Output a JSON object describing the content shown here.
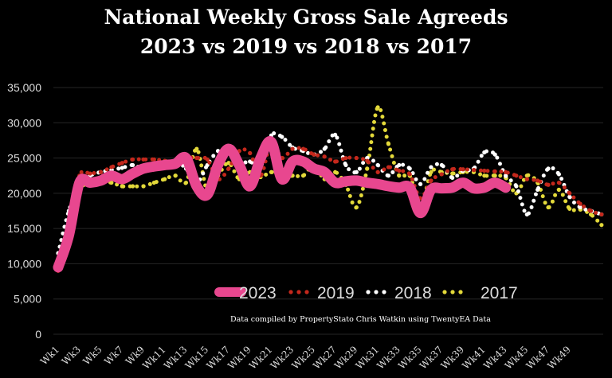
{
  "chart_data": {
    "type": "line",
    "title": [
      "National Weekly Gross Sale Agreeds",
      "2023 vs 2019 vs 2018 vs 2017"
    ],
    "annotation": "Data compiled by PropertyStato Chris Watkin using TwentyEA Data",
    "xlabel": "",
    "ylabel": "",
    "ylim": [
      0,
      35000
    ],
    "yticks": [
      "0",
      "5,000",
      "10,000",
      "15,000",
      "20,000",
      "25,000",
      "30,000",
      "35,000"
    ],
    "yticks_values": [
      0,
      5000,
      10000,
      15000,
      20000,
      25000,
      30000,
      35000
    ],
    "xtick_labels": [
      "Wk1",
      "Wk3",
      "Wk5",
      "Wk7",
      "Wk9",
      "Wk11",
      "Wk13",
      "Wk15",
      "Wk17",
      "Wk19",
      "Wk21",
      "Wk23",
      "Wk25",
      "Wk27",
      "Wk29",
      "Wk31",
      "Wk33",
      "Wk35",
      "Wk37",
      "Wk39",
      "Wk41",
      "Wk43",
      "Wk45",
      "Wk47",
      "Wk49"
    ],
    "grid": "horizontal",
    "legend_placement": "bottom-center",
    "series": [
      {
        "name": "2023",
        "color": "#e8478f",
        "style": "thick-solid-smooth",
        "values": [
          9500,
          14000,
          21500,
          21500,
          21800,
          22500,
          22000,
          22800,
          23500,
          23800,
          24000,
          24200,
          25000,
          21000,
          19800,
          24000,
          26300,
          24000,
          21000,
          25000,
          27300,
          22000,
          24500,
          24500,
          23500,
          23000,
          21500,
          21700,
          21800,
          21500,
          21300,
          21000,
          20800,
          20800,
          17200,
          20500,
          20700,
          20800,
          21500,
          20700,
          20800,
          21500,
          20800
        ]
      },
      {
        "name": "2019",
        "color": "#c4281c",
        "style": "dotted",
        "values": [
          9000,
          15000,
          22500,
          22800,
          23000,
          23700,
          24300,
          24800,
          24800,
          24800,
          24600,
          24300,
          25000,
          25000,
          24800,
          22000,
          23500,
          26000,
          25700,
          22500,
          27200,
          25000,
          26300,
          26300,
          25500,
          25200,
          24500,
          25000,
          25000,
          24600,
          23000,
          23700,
          23200,
          22700,
          19300,
          21800,
          22700,
          23400,
          23400,
          23300,
          23200,
          23100,
          23000,
          22500,
          22000,
          21800,
          21200,
          21500,
          20000,
          18500,
          17500,
          17000
        ]
      },
      {
        "name": "2018",
        "color": "#ffffff",
        "style": "dotted",
        "values": [
          11500,
          17500,
          21000,
          22500,
          23000,
          23300,
          23600,
          24000,
          23500,
          23800,
          24000,
          24500,
          23500,
          21500,
          24000,
          26000,
          26000,
          24300,
          24500,
          23800,
          28200,
          28000,
          26500,
          26000,
          25500,
          26300,
          28300,
          24000,
          23000,
          25000,
          24000,
          22500,
          24000,
          23500,
          21300,
          23700,
          24000,
          22200,
          23200,
          23500,
          25800,
          25500,
          22500,
          21000,
          17000,
          20500,
          23500,
          22700,
          19500,
          18000,
          17500,
          17000
        ]
      },
      {
        "name": "2017",
        "color": "#e3d93a",
        "style": "dotted",
        "values": [
          10300,
          15500,
          20500,
          21300,
          21500,
          21500,
          21000,
          21000,
          21000,
          21500,
          22000,
          22500,
          21500,
          26300,
          20300,
          22500,
          24300,
          22000,
          23000,
          22300,
          23000,
          22300,
          22500,
          22500,
          24000,
          22000,
          23000,
          21200,
          18000,
          23500,
          32200,
          27000,
          22500,
          22500,
          18000,
          23000,
          23000,
          22800,
          23000,
          23000,
          22500,
          22500,
          22200,
          20000,
          22500,
          21500,
          18000,
          20500,
          17800,
          17700,
          17000,
          15500
        ]
      }
    ]
  }
}
